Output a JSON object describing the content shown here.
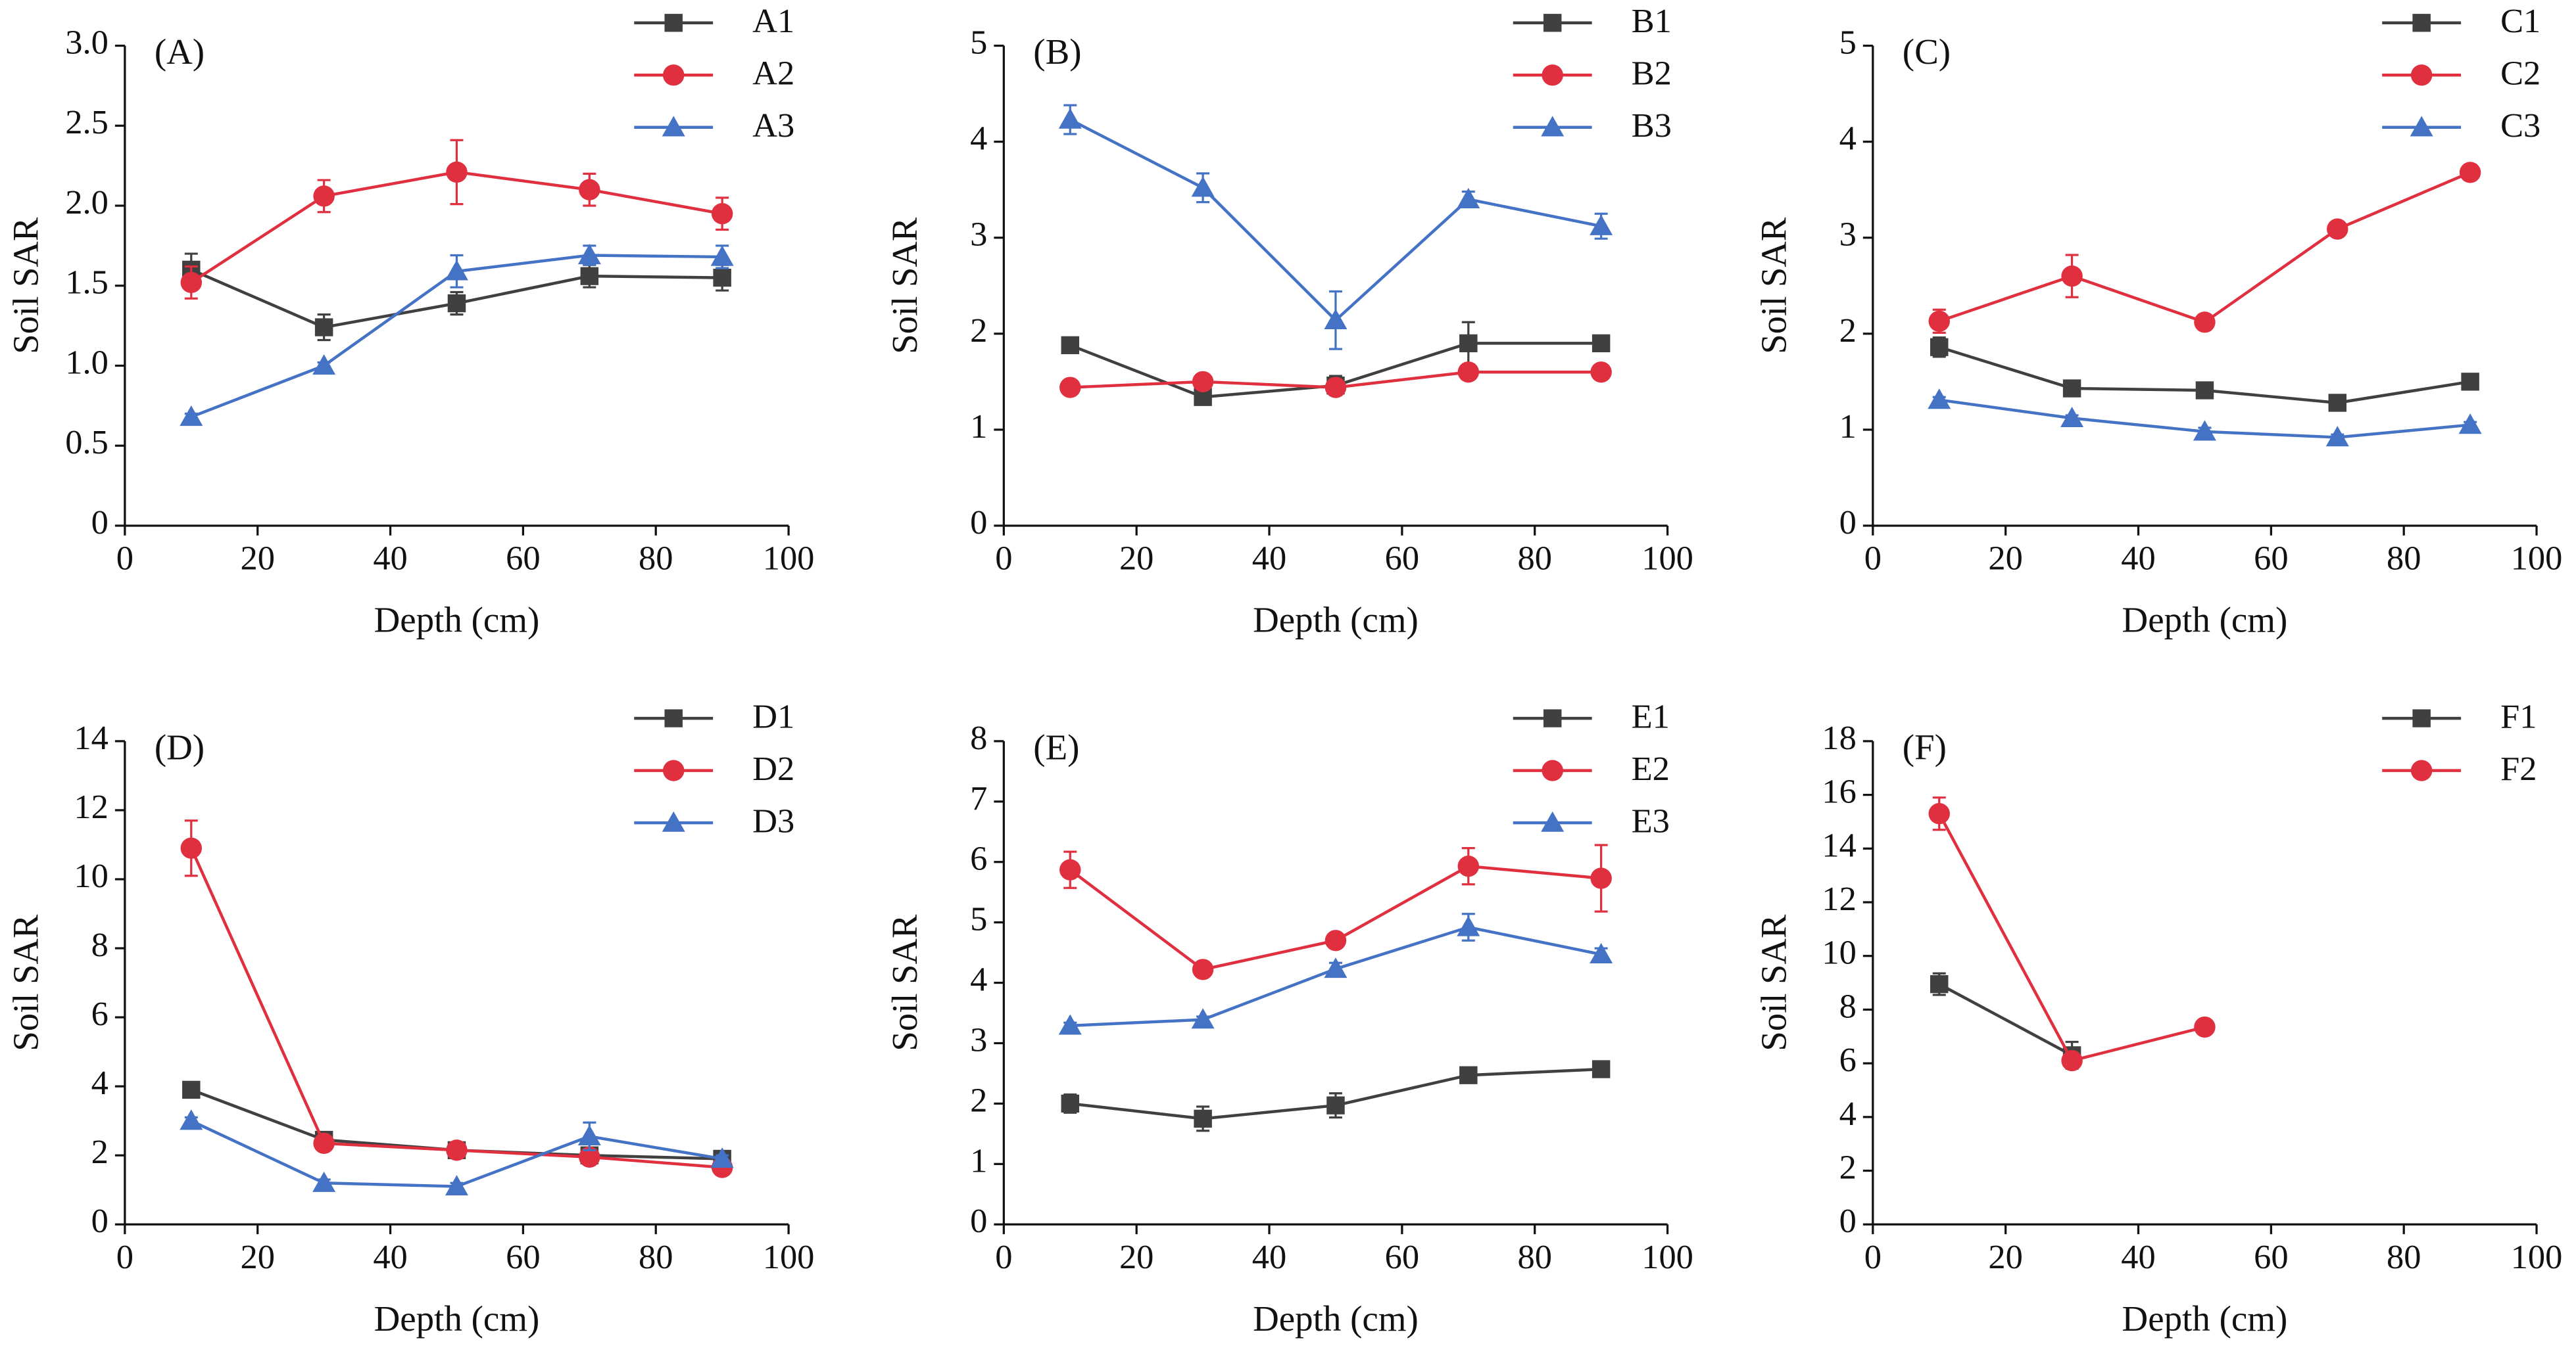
{
  "chart_data": [
    {
      "type": "line",
      "title": "(A)",
      "xlabel": "Depth (cm)",
      "ylabel": "Soil SAR",
      "x": [
        10,
        30,
        50,
        70,
        90
      ],
      "xlim": [
        0,
        100
      ],
      "xticks": [
        0,
        20,
        40,
        60,
        80,
        100
      ],
      "ylim": [
        0,
        3
      ],
      "yticks": [
        0,
        0.5,
        {
          "value": 1,
          "label": "1.0"
        },
        1.5,
        {
          "value": 2,
          "label": "2.0"
        },
        2.5,
        {
          "value": 3,
          "label": "3.0"
        }
      ],
      "series": [
        {
          "name": "A1",
          "color": "#404040",
          "marker": "square",
          "values": [
            1.6,
            1.24,
            1.39,
            1.56,
            1.55
          ],
          "errors": [
            0.1,
            0.08,
            0.07,
            0.07,
            0.08
          ]
        },
        {
          "name": "A2",
          "color": "#e03040",
          "marker": "circle",
          "values": [
            1.52,
            2.06,
            2.21,
            2.1,
            1.95
          ],
          "errors": [
            0.1,
            0.1,
            0.2,
            0.1,
            0.1
          ]
        },
        {
          "name": "A3",
          "color": "#4472c4",
          "marker": "triangle",
          "values": [
            0.68,
            1.0,
            1.59,
            1.69,
            1.68
          ],
          "errors": [
            0.02,
            0.02,
            0.1,
            0.06,
            0.07
          ]
        }
      ]
    },
    {
      "type": "line",
      "title": "(B)",
      "xlabel": "Depth (cm)",
      "ylabel": "Soil SAR",
      "x": [
        10,
        30,
        50,
        70,
        90
      ],
      "xlim": [
        0,
        100
      ],
      "xticks": [
        0,
        20,
        40,
        60,
        80,
        100
      ],
      "ylim": [
        0,
        5
      ],
      "yticks": [
        0,
        1,
        2,
        3,
        4,
        5
      ],
      "series": [
        {
          "name": "B1",
          "color": "#404040",
          "marker": "square",
          "values": [
            1.88,
            1.34,
            1.46,
            1.9,
            1.9
          ],
          "errors": [
            0.05,
            0.05,
            0.1,
            0.22,
            0.08
          ]
        },
        {
          "name": "B2",
          "color": "#e03040",
          "marker": "circle",
          "values": [
            1.44,
            1.5,
            1.44,
            1.6,
            1.6
          ],
          "errors": [
            0.03,
            0.03,
            0.08,
            0.03,
            0.03
          ]
        },
        {
          "name": "B3",
          "color": "#4472c4",
          "marker": "triangle",
          "values": [
            4.23,
            3.52,
            2.14,
            3.4,
            3.12
          ],
          "errors": [
            0.15,
            0.15,
            0.3,
            0.08,
            0.13
          ]
        }
      ]
    },
    {
      "type": "line",
      "title": "(C)",
      "xlabel": "Depth (cm)",
      "ylabel": "Soil SAR",
      "x": [
        10,
        30,
        50,
        70,
        90
      ],
      "xlim": [
        0,
        100
      ],
      "xticks": [
        0,
        20,
        40,
        60,
        80,
        100
      ],
      "ylim": [
        0,
        5
      ],
      "yticks": [
        0,
        1,
        2,
        3,
        4,
        5
      ],
      "series": [
        {
          "name": "C1",
          "color": "#404040",
          "marker": "square",
          "values": [
            1.86,
            1.43,
            1.41,
            1.28,
            1.5
          ],
          "errors": [
            0.1,
            0.07,
            0.06,
            0.03,
            0.03
          ]
        },
        {
          "name": "C2",
          "color": "#e03040",
          "marker": "circle",
          "values": [
            2.13,
            2.6,
            2.12,
            3.09,
            3.68
          ],
          "errors": [
            0.12,
            0.22,
            0.08,
            0.07,
            0.08
          ]
        },
        {
          "name": "C3",
          "color": "#4472c4",
          "marker": "triangle",
          "values": [
            1.31,
            1.12,
            0.98,
            0.92,
            1.05
          ],
          "errors": [
            0.03,
            0.03,
            0.04,
            0.03,
            0.03
          ]
        }
      ]
    },
    {
      "type": "line",
      "title": "(D)",
      "xlabel": "Depth (cm)",
      "ylabel": "Soil SAR",
      "x": [
        10,
        30,
        50,
        70,
        90
      ],
      "xlim": [
        0,
        100
      ],
      "xticks": [
        0,
        20,
        40,
        60,
        80,
        100
      ],
      "ylim": [
        0,
        14
      ],
      "yticks": [
        0,
        2,
        4,
        6,
        8,
        10,
        12,
        14
      ],
      "series": [
        {
          "name": "D1",
          "color": "#404040",
          "marker": "square",
          "values": [
            3.9,
            2.45,
            2.15,
            2.0,
            1.9
          ],
          "errors": [
            0.1,
            0.2,
            0.1,
            0.1,
            0.1
          ]
        },
        {
          "name": "D2",
          "color": "#e03040",
          "marker": "circle",
          "values": [
            10.9,
            2.35,
            2.15,
            1.95,
            1.65
          ],
          "errors": [
            0.8,
            0.15,
            0.1,
            0.1,
            0.1
          ]
        },
        {
          "name": "D3",
          "color": "#4472c4",
          "marker": "triangle",
          "values": [
            3.0,
            1.2,
            1.1,
            2.55,
            1.9
          ],
          "errors": [
            0.1,
            0.1,
            0.1,
            0.4,
            0.1
          ]
        }
      ]
    },
    {
      "type": "line",
      "title": "(E)",
      "xlabel": "Depth (cm)",
      "ylabel": "Soil SAR",
      "x": [
        10,
        30,
        50,
        70,
        90
      ],
      "xlim": [
        0,
        100
      ],
      "xticks": [
        0,
        20,
        40,
        60,
        80,
        100
      ],
      "ylim": [
        0,
        8
      ],
      "yticks": [
        0,
        1,
        2,
        3,
        4,
        5,
        6,
        7,
        8
      ],
      "series": [
        {
          "name": "E1",
          "color": "#404040",
          "marker": "square",
          "values": [
            2.0,
            1.75,
            1.97,
            2.47,
            2.57
          ],
          "errors": [
            0.15,
            0.2,
            0.2,
            0.05,
            0.05
          ]
        },
        {
          "name": "E2",
          "color": "#e03040",
          "marker": "circle",
          "values": [
            5.87,
            4.22,
            4.7,
            5.93,
            5.73
          ],
          "errors": [
            0.3,
            0.08,
            0.08,
            0.3,
            0.55
          ]
        },
        {
          "name": "E3",
          "color": "#4472c4",
          "marker": "triangle",
          "values": [
            3.29,
            3.39,
            4.23,
            4.92,
            4.47
          ],
          "errors": [
            0.05,
            0.05,
            0.1,
            0.22,
            0.1
          ]
        }
      ]
    },
    {
      "type": "line",
      "title": "(F)",
      "xlabel": "Depth (cm)",
      "ylabel": "Soil SAR",
      "x": [
        10,
        30,
        50,
        70,
        90
      ],
      "xlim": [
        0,
        100
      ],
      "xticks": [
        0,
        20,
        40,
        60,
        80,
        100
      ],
      "ylim": [
        0,
        18
      ],
      "yticks": [
        0,
        2,
        4,
        6,
        8,
        10,
        12,
        14,
        16,
        18
      ],
      "series": [
        {
          "name": "F1",
          "color": "#404040",
          "marker": "square",
          "values": [
            8.95,
            6.3,
            null,
            null,
            null
          ],
          "errors": [
            0.4,
            0.5,
            null,
            null,
            null
          ]
        },
        {
          "name": "F2",
          "color": "#e03040",
          "marker": "circle",
          "values": [
            15.3,
            6.1,
            7.35,
            null,
            null
          ],
          "errors": [
            0.6,
            0.2,
            0.1,
            null,
            null
          ]
        }
      ]
    }
  ]
}
